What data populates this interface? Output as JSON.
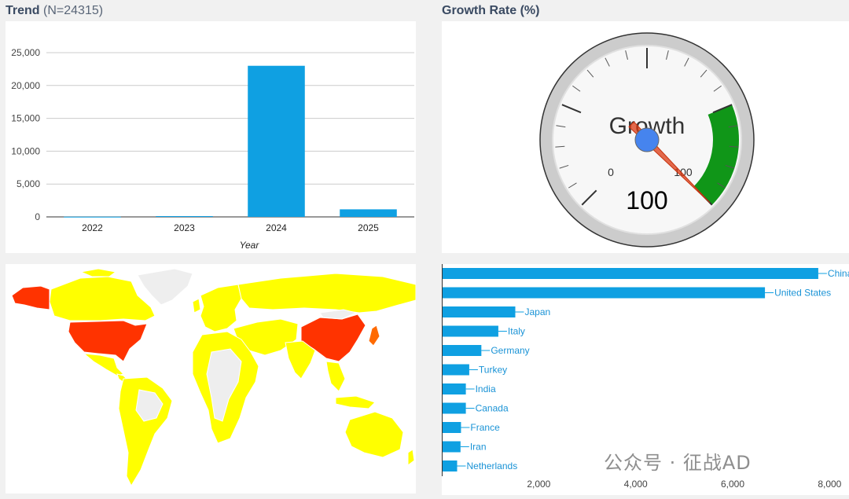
{
  "trend": {
    "title": "Trend",
    "subtitle": "(N=24315)"
  },
  "gauge_panel": {
    "title": "Growth Rate (%)"
  },
  "watermark": "公众号 · 征战AD",
  "chart_data": [
    {
      "type": "bar",
      "categories": [
        "2022",
        "2023",
        "2024",
        "2025"
      ],
      "values": [
        30,
        120,
        23000,
        1150
      ],
      "xlabel": "Year",
      "ylabel": "",
      "ylim": [
        0,
        25000
      ],
      "yticks": [
        0,
        5000,
        10000,
        15000,
        20000,
        25000
      ],
      "ytick_labels": [
        "0",
        "5,000",
        "10,000",
        "15,000",
        "20,000",
        "25,000"
      ],
      "grid": true,
      "color": "#0fa0e2"
    },
    {
      "type": "gauge",
      "label": "Growth",
      "value": 100,
      "min": 0,
      "max": 100,
      "min_label": "0",
      "max_label": "100",
      "green_band": [
        75,
        100
      ],
      "band_color": "#109618"
    },
    {
      "type": "map",
      "scale_colors": [
        "#ffff00",
        "#ff3300"
      ],
      "high_countries": [
        "China",
        "United States"
      ],
      "no_data_color": "#eeeeee"
    },
    {
      "type": "bar",
      "orientation": "horizontal",
      "categories": [
        "China",
        "United States",
        "Japan",
        "Italy",
        "Germany",
        "Turkey",
        "India",
        "Canada",
        "France",
        "Iran",
        "Netherlands"
      ],
      "values": [
        7750,
        6650,
        1500,
        1150,
        800,
        550,
        480,
        480,
        380,
        370,
        300
      ],
      "xlim": [
        0,
        8400
      ],
      "xticks": [
        2000,
        4000,
        6000,
        8000
      ],
      "xtick_labels": [
        "2,000",
        "4,000",
        "6,000",
        "8,000"
      ],
      "color": "#0fa0e2"
    }
  ]
}
